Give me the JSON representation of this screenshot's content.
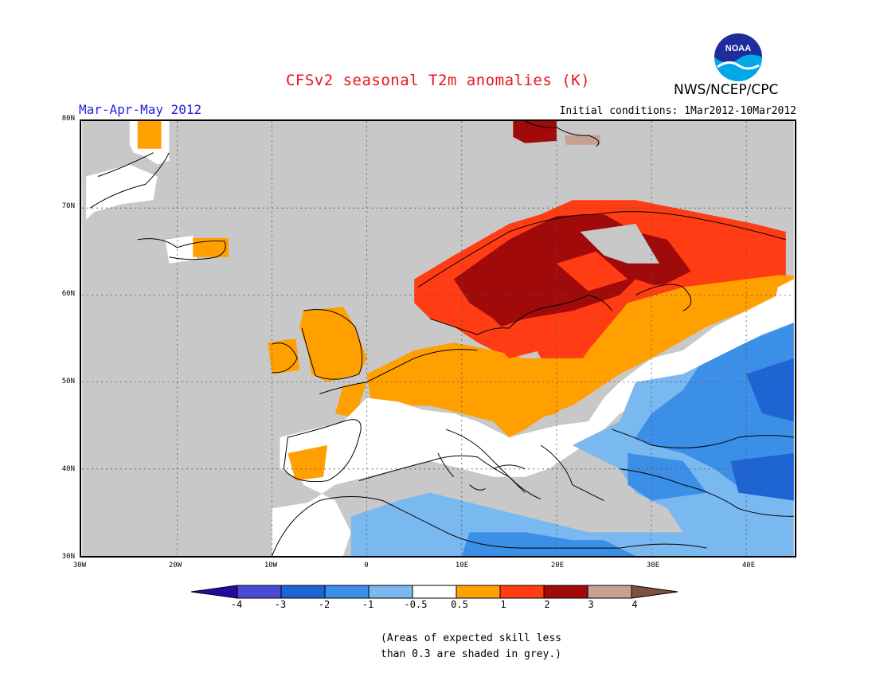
{
  "header": {
    "title": "CFSv2 seasonal T2m anomalies (K)",
    "agency": "NWS/NCEP/CPC",
    "period": "Mar-Apr-May 2012",
    "initial_conditions": "Initial conditions: 1Mar2012-10Mar2012"
  },
  "logo": {
    "icon": "noaa-logo-icon",
    "text": "NOAA"
  },
  "axes": {
    "lat_labels": [
      "80N",
      "70N",
      "60N",
      "50N",
      "40N",
      "30N"
    ],
    "lon_labels": [
      "30W",
      "20W",
      "10W",
      "0",
      "10E",
      "20E",
      "30E",
      "40E"
    ]
  },
  "legend": {
    "labels": [
      "-4",
      "-3",
      "-2",
      "-1",
      "-0.5",
      "0.5",
      "1",
      "2",
      "3",
      "4"
    ],
    "colors": [
      "#2a08a0",
      "#4a4ad6",
      "#1e64d2",
      "#3c8fe6",
      "#7ab8f0",
      "#ffffff",
      "#ffa000",
      "#ff3c14",
      "#a00a0a",
      "#c8a090",
      "#825040"
    ]
  },
  "note": {
    "line1": "(Areas of expected skill less",
    "line2": "than 0.3 are shaded in grey.)"
  },
  "map_colors": {
    "grey": "#c8c8c8",
    "white": "#ffffff",
    "orange": "#ffa000",
    "red": "#ff3c14",
    "darkred": "#a00a0a",
    "pink": "#c8a090",
    "lightblue": "#7ab8f0",
    "blue": "#3c8fe6",
    "midblue": "#1e64d2"
  }
}
